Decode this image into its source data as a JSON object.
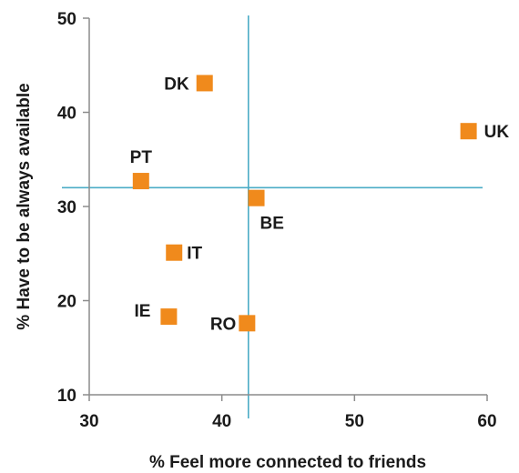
{
  "chart_data": {
    "type": "scatter",
    "title": "",
    "xlabel": "% Feel more connected to friends",
    "ylabel": "% Have to be always available",
    "xlim": [
      30,
      60
    ],
    "ylim": [
      10,
      50
    ],
    "xticks": [
      "30",
      "40",
      "50",
      "60"
    ],
    "yticks": [
      "10",
      "20",
      "30",
      "40",
      "50"
    ],
    "grid": false,
    "marker_color": "#f08a1c",
    "reference_line_color": "#4bacc6",
    "reference_lines": {
      "x": 42,
      "y": 32
    },
    "points": [
      {
        "label": "DK",
        "x": 38.7,
        "y": 43.1
      },
      {
        "label": "UK",
        "x": 58.6,
        "y": 38.0
      },
      {
        "label": "PT",
        "x": 33.9,
        "y": 32.7
      },
      {
        "label": "BE",
        "x": 42.6,
        "y": 30.9
      },
      {
        "label": "IT",
        "x": 36.4,
        "y": 25.1
      },
      {
        "label": "IE",
        "x": 36.0,
        "y": 18.3
      },
      {
        "label": "RO",
        "x": 41.9,
        "y": 17.6
      }
    ]
  }
}
